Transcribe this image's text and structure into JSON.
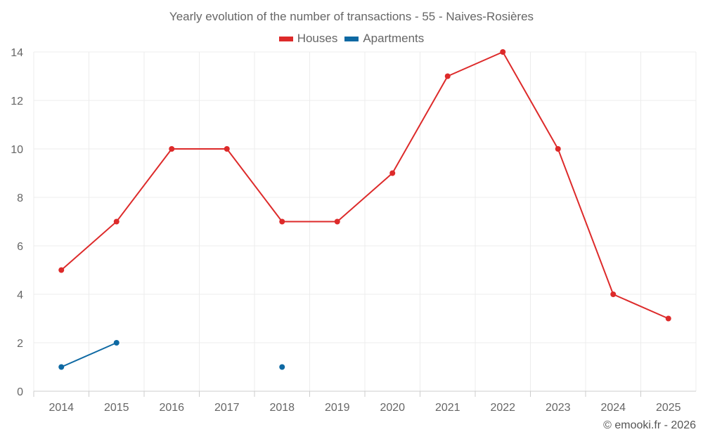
{
  "chart_data": {
    "type": "line",
    "title": "Yearly evolution of the number of transactions - 55 - Naives-Rosières",
    "categories": [
      "2014",
      "2015",
      "2016",
      "2017",
      "2018",
      "2019",
      "2020",
      "2021",
      "2022",
      "2023",
      "2024",
      "2025"
    ],
    "series": [
      {
        "name": "Houses",
        "color": "#dd2a2a",
        "values": [
          5,
          7,
          10,
          10,
          7,
          7,
          9,
          13,
          14,
          10,
          4,
          3
        ]
      },
      {
        "name": "Apartments",
        "color": "#0e69a3",
        "values": [
          1,
          2,
          null,
          null,
          1,
          null,
          null,
          null,
          null,
          null,
          null,
          null
        ]
      }
    ],
    "yticks": [
      0,
      2,
      4,
      6,
      8,
      10,
      12,
      14
    ],
    "ylim": [
      0,
      14
    ],
    "xlabel": "",
    "ylabel": "",
    "grid": true,
    "legend": "top-center"
  },
  "credit": "© emooki.fr - 2026"
}
